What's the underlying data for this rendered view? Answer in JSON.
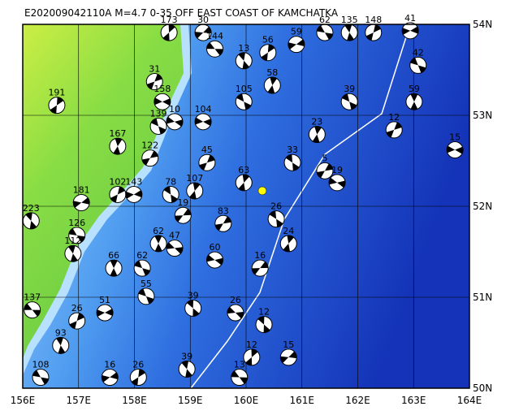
{
  "map": {
    "title": "E202009042110A M=4.7 0-35 OFF EAST COAST OF KAMCHATKA",
    "xlim": [
      156,
      164
    ],
    "ylim": [
      50,
      54
    ],
    "xticks": [
      {
        "value": 156,
        "label": "156E"
      },
      {
        "value": 157,
        "label": "157E"
      },
      {
        "value": 158,
        "label": "158E"
      },
      {
        "value": 159,
        "label": "159E"
      },
      {
        "value": 160,
        "label": "160E"
      },
      {
        "value": 161,
        "label": "161E"
      },
      {
        "value": 162,
        "label": "162E"
      },
      {
        "value": 163,
        "label": "163E"
      },
      {
        "value": 164,
        "label": "164E"
      }
    ],
    "yticks": [
      {
        "value": 50,
        "label": "50N"
      },
      {
        "value": 51,
        "label": "51N"
      },
      {
        "value": 52,
        "label": "52N"
      },
      {
        "value": 53,
        "label": "53N"
      },
      {
        "value": 54,
        "label": "54N"
      }
    ],
    "epicenter": {
      "lon": 160.29,
      "lat": 52.17,
      "color": "#ffff00"
    },
    "events": [
      {
        "lon": 156.17,
        "lat": 50.86,
        "depth": 137
      },
      {
        "lon": 156.15,
        "lat": 51.84,
        "depth": 223
      },
      {
        "lon": 156.61,
        "lat": 53.11,
        "depth": 191
      },
      {
        "lon": 157.05,
        "lat": 52.04,
        "depth": 181
      },
      {
        "lon": 156.97,
        "lat": 51.68,
        "depth": 126
      },
      {
        "lon": 156.9,
        "lat": 51.48,
        "depth": 112
      },
      {
        "lon": 157.7,
        "lat": 52.13,
        "depth": 102
      },
      {
        "lon": 157.99,
        "lat": 52.13,
        "depth": 143
      },
      {
        "lon": 158.14,
        "lat": 51.32,
        "depth": 62
      },
      {
        "lon": 158.43,
        "lat": 51.59,
        "depth": 62
      },
      {
        "lon": 158.36,
        "lat": 53.37,
        "depth": 31
      },
      {
        "lon": 158.5,
        "lat": 53.15,
        "depth": 158
      },
      {
        "lon": 158.43,
        "lat": 52.88,
        "depth": 139
      },
      {
        "lon": 157.7,
        "lat": 52.66,
        "depth": 167
      },
      {
        "lon": 158.28,
        "lat": 52.53,
        "depth": 122
      },
      {
        "lon": 158.72,
        "lat": 52.93,
        "depth": 10
      },
      {
        "lon": 158.65,
        "lat": 52.13,
        "depth": 78
      },
      {
        "lon": 159.08,
        "lat": 52.17,
        "depth": 107
      },
      {
        "lon": 158.87,
        "lat": 51.9,
        "depth": 19
      },
      {
        "lon": 158.72,
        "lat": 51.54,
        "depth": 47
      },
      {
        "lon": 159.05,
        "lat": 50.88,
        "depth": 39
      },
      {
        "lon": 158.62,
        "lat": 53.91,
        "depth": 173
      },
      {
        "lon": 159.23,
        "lat": 53.91,
        "depth": 30
      },
      {
        "lon": 159.44,
        "lat": 53.73,
        "depth": 144
      },
      {
        "lon": 159.96,
        "lat": 53.6,
        "depth": 13
      },
      {
        "lon": 160.39,
        "lat": 53.69,
        "depth": 56
      },
      {
        "lon": 160.9,
        "lat": 53.78,
        "depth": 59
      },
      {
        "lon": 161.41,
        "lat": 53.91,
        "depth": 62
      },
      {
        "lon": 161.85,
        "lat": 53.91,
        "depth": 135
      },
      {
        "lon": 162.28,
        "lat": 53.91,
        "depth": 148
      },
      {
        "lon": 162.94,
        "lat": 53.93,
        "depth": 41
      },
      {
        "lon": 163.08,
        "lat": 53.55,
        "depth": 42
      },
      {
        "lon": 163.01,
        "lat": 53.15,
        "depth": 59
      },
      {
        "lon": 162.65,
        "lat": 52.84,
        "depth": 12
      },
      {
        "lon": 163.74,
        "lat": 52.62,
        "depth": 15
      },
      {
        "lon": 161.85,
        "lat": 53.15,
        "depth": 39
      },
      {
        "lon": 161.27,
        "lat": 52.79,
        "depth": 23
      },
      {
        "lon": 161.41,
        "lat": 52.39,
        "depth": 5
      },
      {
        "lon": 161.63,
        "lat": 52.26,
        "depth": 19
      },
      {
        "lon": 160.54,
        "lat": 51.86,
        "depth": 26
      },
      {
        "lon": 160.76,
        "lat": 51.59,
        "depth": 24
      },
      {
        "lon": 160.25,
        "lat": 51.32,
        "depth": 16
      },
      {
        "lon": 159.81,
        "lat": 50.83,
        "depth": 26
      },
      {
        "lon": 160.32,
        "lat": 50.7,
        "depth": 12
      },
      {
        "lon": 160.1,
        "lat": 50.34,
        "depth": 12
      },
      {
        "lon": 160.76,
        "lat": 50.34,
        "depth": 15
      },
      {
        "lon": 159.88,
        "lat": 50.12,
        "depth": 13
      },
      {
        "lon": 158.94,
        "lat": 50.21,
        "depth": 39
      },
      {
        "lon": 158.07,
        "lat": 50.12,
        "depth": 26
      },
      {
        "lon": 157.56,
        "lat": 50.12,
        "depth": 16
      },
      {
        "lon": 156.32,
        "lat": 50.12,
        "depth": 108
      },
      {
        "lon": 156.68,
        "lat": 50.47,
        "depth": 93
      },
      {
        "lon": 156.97,
        "lat": 50.74,
        "depth": 26
      },
      {
        "lon": 157.47,
        "lat": 50.83,
        "depth": 51
      },
      {
        "lon": 158.21,
        "lat": 51.01,
        "depth": 55
      },
      {
        "lon": 157.63,
        "lat": 51.32,
        "depth": 66
      },
      {
        "lon": 159.3,
        "lat": 52.48,
        "depth": 45
      },
      {
        "lon": 159.23,
        "lat": 52.93,
        "depth": 104
      },
      {
        "lon": 159.96,
        "lat": 53.15,
        "depth": 105
      },
      {
        "lon": 160.47,
        "lat": 53.33,
        "depth": 58
      },
      {
        "lon": 159.59,
        "lat": 51.81,
        "depth": 83
      },
      {
        "lon": 159.44,
        "lat": 51.41,
        "depth": 60
      },
      {
        "lon": 160.83,
        "lat": 52.48,
        "depth": 33
      },
      {
        "lon": 159.96,
        "lat": 52.26,
        "depth": 63
      }
    ]
  }
}
